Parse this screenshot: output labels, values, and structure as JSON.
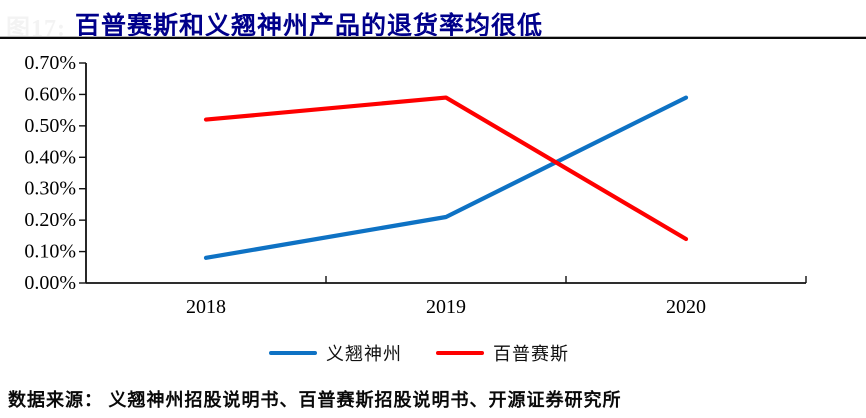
{
  "header": {
    "figure_label": "图17:",
    "title": "百普赛斯和义翘神州产品的退货率均很低",
    "title_color": "#00008B"
  },
  "chart_data": {
    "type": "line",
    "title": "百普赛斯和义翘神州产品的退货率均很低",
    "categories": [
      "2018",
      "2019",
      "2020"
    ],
    "series": [
      {
        "name": "义翘神州",
        "color": "#0E72C4",
        "values": [
          0.08,
          0.21,
          0.59
        ]
      },
      {
        "name": "百普赛斯",
        "color": "#FE0000",
        "values": [
          0.52,
          0.59,
          0.14
        ]
      }
    ],
    "unit": "%",
    "xlabel": "",
    "ylabel": "",
    "ylim": [
      0,
      0.7
    ],
    "ytick_step": 0.1,
    "ytick_labels": [
      "0.00%",
      "0.10%",
      "0.20%",
      "0.30%",
      "0.40%",
      "0.50%",
      "0.60%",
      "0.70%"
    ],
    "grid": false,
    "legend_position": "bottom",
    "axis_color": "#111111"
  },
  "footer": {
    "text": "数据来源： 义翘神州招股说明书、百普赛斯招股说明书、开源证券研究所"
  }
}
